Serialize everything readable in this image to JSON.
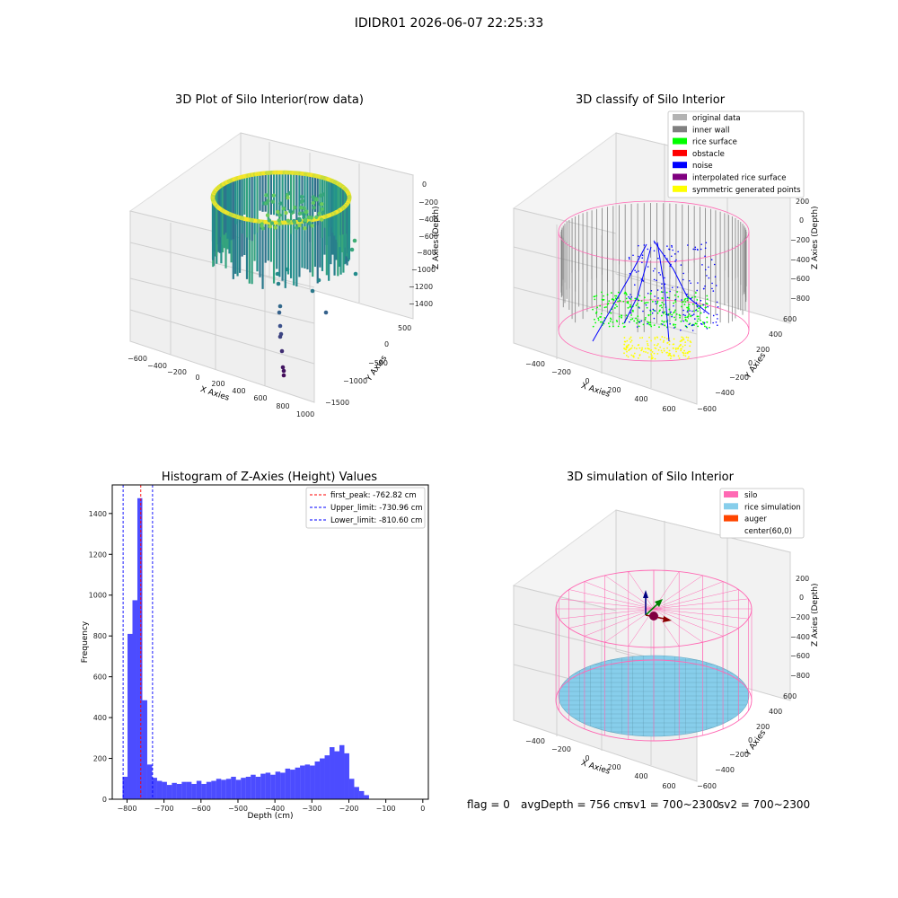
{
  "figure": {
    "suptitle": "IDIDR01 2026-06-07 22:25:33"
  },
  "colors": {
    "gray_light": "#b3b3b3",
    "gray_dark": "#808080",
    "green": "#00ff00",
    "red": "#ff0000",
    "blue": "#0000ff",
    "purple": "#800080",
    "yellow": "#ffff00",
    "pink": "#ff69b4",
    "skyblue": "#87ceeb",
    "orange": "#ff4500",
    "hist": "#0000ff"
  },
  "chart_data": [
    {
      "type": "scatter",
      "title": "3D Plot of Silo Interior(row data)",
      "xlabel": "X Axies",
      "ylabel": "Y Axies",
      "zlabel": "Z Axies (Depth)",
      "x_ticks": [
        "−600",
        "−400",
        "−200",
        "0",
        "200",
        "400",
        "600",
        "800",
        "1000"
      ],
      "y_ticks": [
        "500",
        "0",
        "−500",
        "−1000",
        "−1500"
      ],
      "z_ticks": [
        "0",
        "−200",
        "−400",
        "−600",
        "−800",
        "−1000",
        "−1200",
        "−1400"
      ],
      "colormap": "viridis (by depth)"
    },
    {
      "type": "scatter",
      "title": "3D classify of Silo Interior",
      "xlabel": "X Axies",
      "ylabel": "Y Axies",
      "zlabel": "Z Axies (Depth)",
      "x_ticks": [
        "−400",
        "−200",
        "0",
        "200",
        "400",
        "600"
      ],
      "y_ticks": [
        "600",
        "400",
        "200",
        "0",
        "−200",
        "−400",
        "−600"
      ],
      "z_ticks": [
        "200",
        "0",
        "−200",
        "−400",
        "−600",
        "−800"
      ],
      "legend": [
        {
          "label": "original data",
          "color": "#b3b3b3"
        },
        {
          "label": "inner wall",
          "color": "#808080"
        },
        {
          "label": "rice surface",
          "color": "#00ff00"
        },
        {
          "label": "obstacle",
          "color": "#ff0000"
        },
        {
          "label": "noise",
          "color": "#0000ff"
        },
        {
          "label": "interpolated rice surface",
          "color": "#800080"
        },
        {
          "label": "symmetric generated points",
          "color": "#ffff00"
        }
      ],
      "legend_position": "top-right"
    },
    {
      "type": "bar",
      "title": "Histogram of Z-Axies (Height) Values",
      "xlabel": "Depth (cm)",
      "ylabel": "Frequency",
      "xlim": [
        -840,
        15
      ],
      "ylim": [
        0,
        1540
      ],
      "x_ticks": [
        -800,
        -700,
        -600,
        -500,
        -400,
        -300,
        -200,
        -100,
        0
      ],
      "x_tick_labels": [
        "−800",
        "−700",
        "−600",
        "−500",
        "−400",
        "−300",
        "−200",
        "−100",
        "0"
      ],
      "y_ticks": [
        0,
        200,
        400,
        600,
        800,
        1000,
        1200,
        1400
      ],
      "bin_start": -812,
      "bin_width": 13.33,
      "values": [
        110,
        810,
        975,
        1475,
        485,
        170,
        105,
        90,
        85,
        70,
        80,
        75,
        85,
        85,
        75,
        90,
        75,
        85,
        90,
        100,
        95,
        100,
        110,
        95,
        105,
        110,
        120,
        110,
        125,
        130,
        120,
        135,
        130,
        150,
        145,
        155,
        165,
        170,
        165,
        185,
        200,
        215,
        255,
        235,
        265,
        225,
        100,
        60,
        40,
        20
      ],
      "vlines": [
        {
          "label": "first_peak: -762.82 cm",
          "x": -762.82,
          "color": "#ff0000"
        },
        {
          "label": "Upper_limit: -730.96 cm",
          "x": -730.96,
          "color": "#0000ff"
        },
        {
          "label": "Lower_limit: -810.60 cm",
          "x": -810.6,
          "color": "#0000ff"
        }
      ],
      "legend_position": "top-right"
    },
    {
      "type": "scatter",
      "title": "3D simulation of Silo Interior",
      "xlabel": "X Axies",
      "ylabel": "Y Axies",
      "zlabel": "Z Axies (Depth)",
      "x_ticks": [
        "−400",
        "−200",
        "0",
        "200",
        "400",
        "600"
      ],
      "y_ticks": [
        "600",
        "400",
        "200",
        "0",
        "−200",
        "−400",
        "−600"
      ],
      "z_ticks": [
        "200",
        "0",
        "−200",
        "−400",
        "−600",
        "−800"
      ],
      "legend": [
        {
          "label": "silo",
          "color": "#ff69b4"
        },
        {
          "label": "rice simulation",
          "color": "#87ceeb"
        },
        {
          "label": "auger",
          "color": "#ff4500"
        },
        {
          "label": "center(60,0)",
          "color": ""
        }
      ],
      "legend_position": "top-right"
    }
  ],
  "footer": {
    "flag": "flag = 0",
    "avg": "avgDepth = 756 cm",
    "sv1": "sv1 = 700~2300",
    "sv2": "sv2 = 700~2300"
  }
}
